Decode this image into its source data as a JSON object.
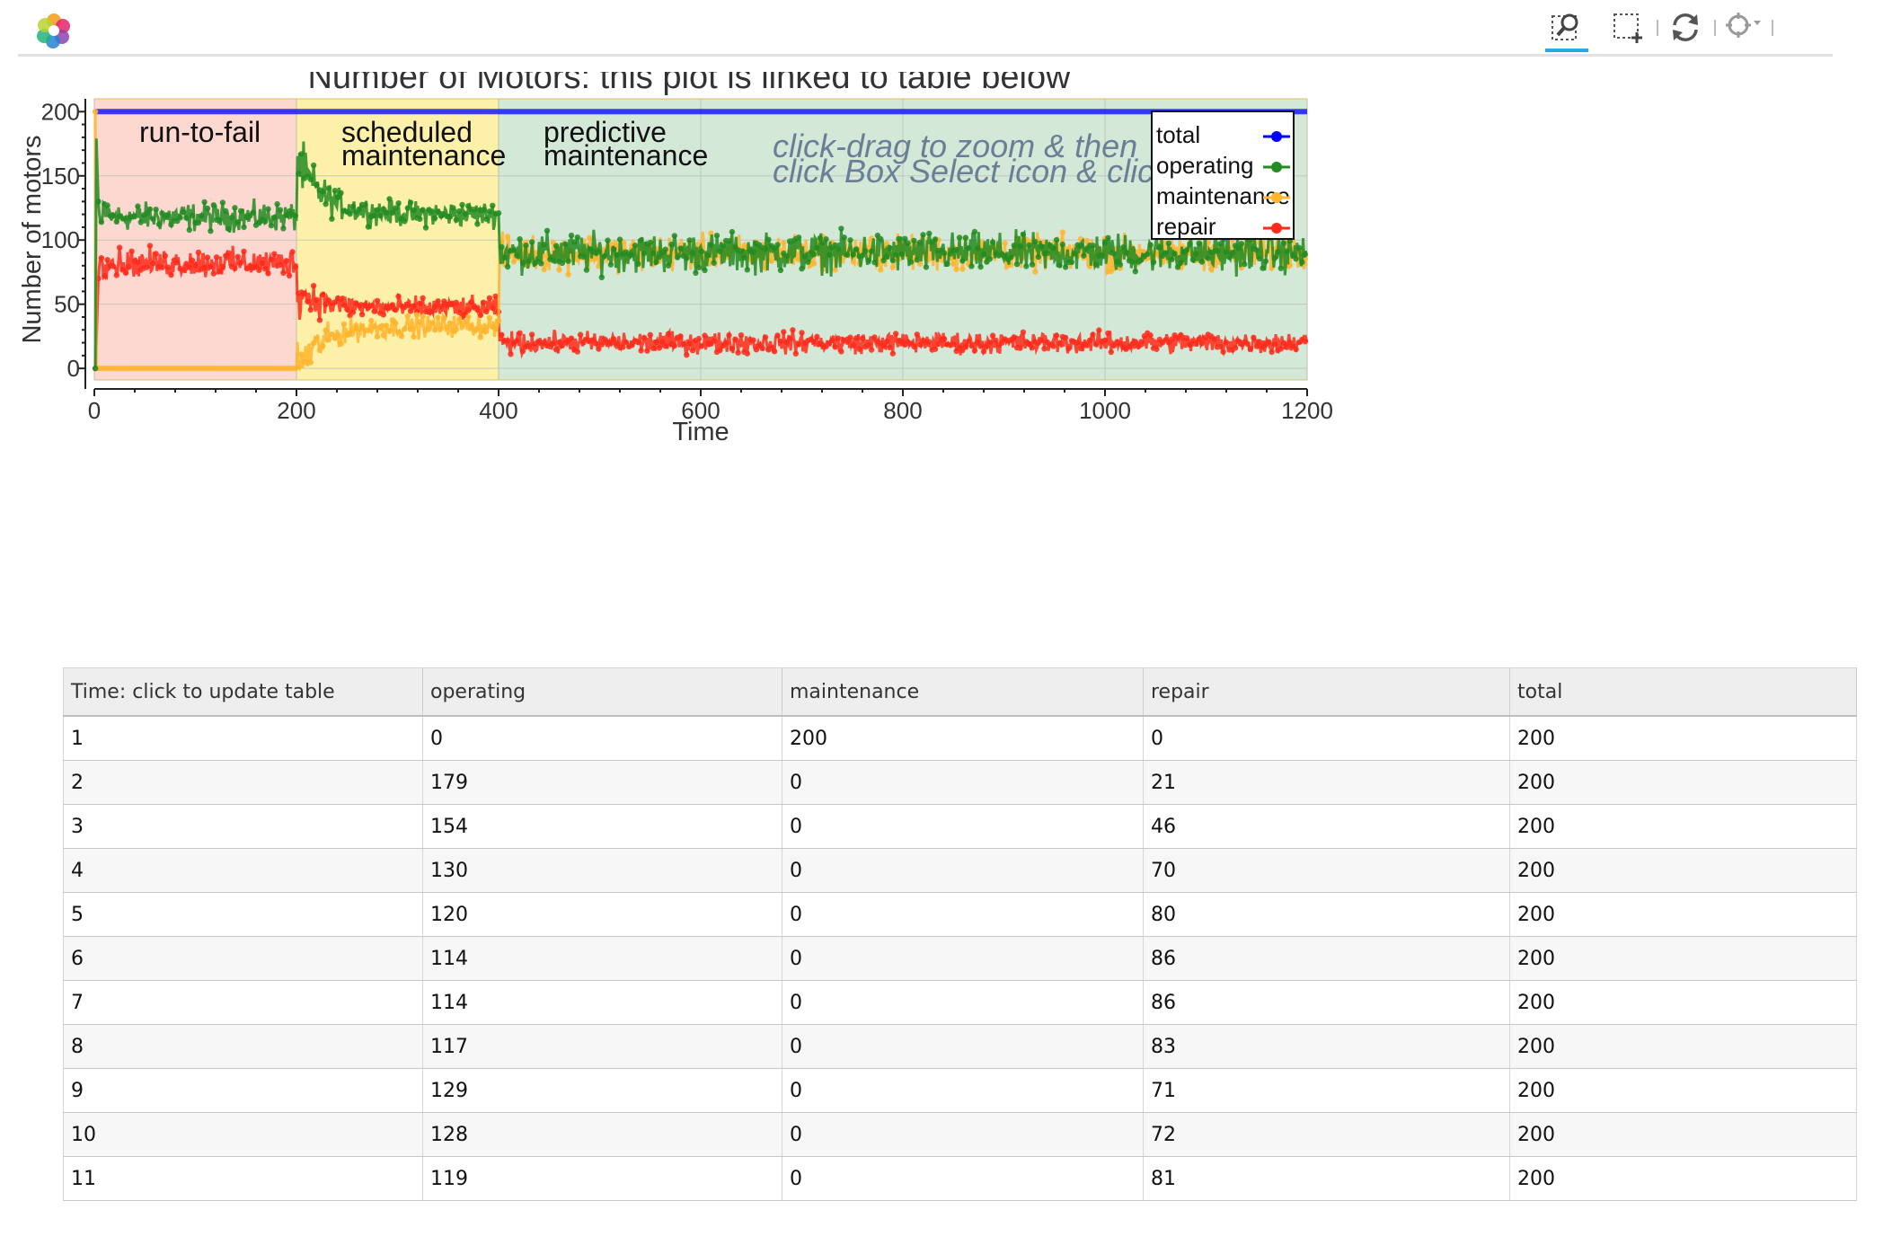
{
  "toolbar": {
    "logo": "bokeh-logo-icon",
    "tools": [
      {
        "name": "box-zoom-icon",
        "active": true
      },
      {
        "name": "box-select-icon",
        "active": false
      },
      {
        "name": "reset-icon",
        "active": false
      },
      {
        "name": "hover-icon",
        "active": false
      }
    ]
  },
  "colors": {
    "total": "#0000ff",
    "operating": "#228b22",
    "maintenance": "#ffb52e",
    "repair": "#ff2a1a",
    "region_run_to_fail": "#fdd8d0",
    "region_scheduled": "#fdf0a9",
    "region_predictive": "#d4e8d8",
    "annotation": "#6a7f96"
  },
  "chart_data": {
    "type": "line",
    "title": "Number of Motors: this plot is linked to table below",
    "xlabel": "Time",
    "ylabel": "Number of motors",
    "xlim": [
      0,
      1200
    ],
    "ylim": [
      -9,
      210
    ],
    "x_ticks": [
      0,
      200,
      400,
      600,
      800,
      1000,
      1200
    ],
    "y_ticks": [
      0,
      50,
      100,
      150,
      200
    ],
    "grid": true,
    "legend_position": "top-right",
    "regions": [
      {
        "label_lines": [
          "run-to-fail"
        ],
        "x_start": 0,
        "x_end": 200,
        "color_key": "region_run_to_fail"
      },
      {
        "label_lines": [
          "scheduled",
          "maintenance"
        ],
        "x_start": 200,
        "x_end": 400,
        "color_key": "region_scheduled"
      },
      {
        "label_lines": [
          "predictive",
          "maintenance"
        ],
        "x_start": 400,
        "x_end": 1200,
        "color_key": "region_predictive"
      }
    ],
    "annotation_lines": [
      "click-drag to zoom & then",
      "click Box Select icon & click-drag"
    ],
    "series": [
      {
        "name": "total",
        "color_key": "total",
        "segments": [
          {
            "x_start": 1,
            "x_end": 1200,
            "mean": 200,
            "noise": 0
          }
        ]
      },
      {
        "name": "operating",
        "color_key": "operating",
        "initial": [
          [
            1,
            0
          ],
          [
            2,
            179
          ],
          [
            3,
            154
          ],
          [
            4,
            130
          ],
          [
            5,
            120
          ],
          [
            6,
            114
          ],
          [
            7,
            114
          ],
          [
            8,
            117
          ],
          [
            9,
            129
          ],
          [
            10,
            128
          ],
          [
            11,
            119
          ]
        ],
        "segments": [
          {
            "x_start": 12,
            "x_end": 200,
            "mean": 118,
            "noise": 8
          },
          {
            "x_start": 201,
            "x_end": 400,
            "mean": 120,
            "noise": 7,
            "start_value": 162
          },
          {
            "x_start": 401,
            "x_end": 1200,
            "mean": 90,
            "noise": 11
          }
        ]
      },
      {
        "name": "maintenance",
        "color_key": "maintenance",
        "initial": [
          [
            1,
            200
          ],
          [
            2,
            0
          ],
          [
            3,
            0
          ],
          [
            4,
            0
          ],
          [
            5,
            0
          ],
          [
            6,
            0
          ],
          [
            7,
            0
          ],
          [
            8,
            0
          ],
          [
            9,
            0
          ],
          [
            10,
            0
          ],
          [
            11,
            0
          ]
        ],
        "segments": [
          {
            "x_start": 12,
            "x_end": 200,
            "mean": 0,
            "noise": 0
          },
          {
            "x_start": 201,
            "x_end": 400,
            "mean": 33,
            "noise": 6,
            "start_value": 0
          },
          {
            "x_start": 401,
            "x_end": 1200,
            "mean": 90,
            "noise": 10
          }
        ]
      },
      {
        "name": "repair",
        "color_key": "repair",
        "initial": [
          [
            1,
            0
          ],
          [
            2,
            21
          ],
          [
            3,
            46
          ],
          [
            4,
            70
          ],
          [
            5,
            80
          ],
          [
            6,
            86
          ],
          [
            7,
            86
          ],
          [
            8,
            83
          ],
          [
            9,
            71
          ],
          [
            10,
            72
          ],
          [
            11,
            81
          ]
        ],
        "segments": [
          {
            "x_start": 12,
            "x_end": 200,
            "mean": 82,
            "noise": 8
          },
          {
            "x_start": 201,
            "x_end": 400,
            "mean": 47,
            "noise": 6,
            "start_value": 60
          },
          {
            "x_start": 401,
            "x_end": 1200,
            "mean": 20,
            "noise": 6
          }
        ]
      }
    ]
  },
  "table": {
    "columns": [
      "Time: click to update table",
      "operating",
      "maintenance",
      "repair",
      "total"
    ],
    "rows": [
      [
        "1",
        "0",
        "200",
        "0",
        "200"
      ],
      [
        "2",
        "179",
        "0",
        "21",
        "200"
      ],
      [
        "3",
        "154",
        "0",
        "46",
        "200"
      ],
      [
        "4",
        "130",
        "0",
        "70",
        "200"
      ],
      [
        "5",
        "120",
        "0",
        "80",
        "200"
      ],
      [
        "6",
        "114",
        "0",
        "86",
        "200"
      ],
      [
        "7",
        "114",
        "0",
        "86",
        "200"
      ],
      [
        "8",
        "117",
        "0",
        "83",
        "200"
      ],
      [
        "9",
        "129",
        "0",
        "71",
        "200"
      ],
      [
        "10",
        "128",
        "0",
        "72",
        "200"
      ],
      [
        "11",
        "119",
        "0",
        "81",
        "200"
      ]
    ]
  }
}
